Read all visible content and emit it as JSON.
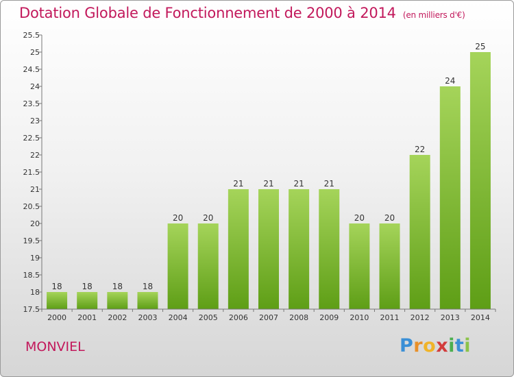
{
  "title": "Dotation Globale de Fonctionnement de 2000 à 2014",
  "unit": "(en milliers d'€)",
  "commune": "MONVIEL",
  "brand": {
    "letters": [
      "P",
      "r",
      "o",
      "x",
      "i",
      "t",
      "i"
    ],
    "colors": [
      "#3a8fd6",
      "#e8902a",
      "#f0b429",
      "#d23c3c",
      "#4caf50",
      "#3a8fd6",
      "#8bc34a"
    ]
  },
  "colors": {
    "bar_light": "#a5d45a",
    "bar_dark": "#5e9e16",
    "title": "#c2185b"
  },
  "chart_data": {
    "type": "bar",
    "categories": [
      "2000",
      "2001",
      "2002",
      "2003",
      "2004",
      "2005",
      "2006",
      "2007",
      "2008",
      "2009",
      "2010",
      "2011",
      "2012",
      "2013",
      "2014"
    ],
    "values": [
      18,
      18,
      18,
      18,
      20,
      20,
      21,
      21,
      21,
      21,
      20,
      20,
      22,
      24,
      25
    ],
    "value_labels": [
      "18",
      "18",
      "18",
      "18",
      "20",
      "20",
      "21",
      "21",
      "21",
      "21",
      "20",
      "20",
      "22",
      "24",
      "25"
    ],
    "ylim": [
      17.5,
      25.5
    ],
    "yticks": [
      17.5,
      18,
      18.5,
      19,
      19.5,
      20,
      20.5,
      21,
      21.5,
      22,
      22.5,
      23,
      23.5,
      24,
      24.5,
      25,
      25.5
    ],
    "ytick_labels": [
      "17.5",
      "18",
      "18.5",
      "19",
      "19.5",
      "20",
      "20.5",
      "21",
      "21.5",
      "22",
      "22.5",
      "23",
      "23.5",
      "24",
      "24.5",
      "25",
      "25.5"
    ],
    "grid": false,
    "legend": "none"
  }
}
